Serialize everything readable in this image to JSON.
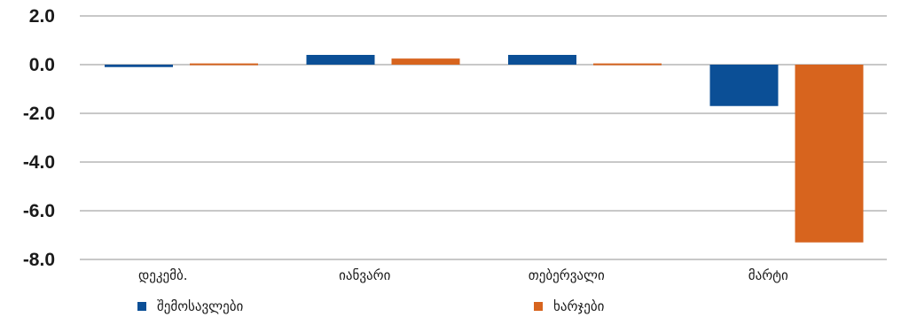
{
  "chart_data": {
    "type": "bar",
    "title": "",
    "xlabel": "",
    "ylabel": "",
    "ylim": [
      -8.0,
      2.0
    ],
    "yticks": [
      "2.0",
      "0.0",
      "-2.0",
      "-4.0",
      "-6.0",
      "-8.0"
    ],
    "categories": [
      "დეკემბ.",
      "იანვარი",
      "თებერვალი",
      "მარტი"
    ],
    "series": [
      {
        "name": "შემოსავლები",
        "color": "#0b4f96",
        "values": [
          -0.1,
          0.4,
          0.4,
          -1.7
        ]
      },
      {
        "name": "ხარჯები",
        "color": "#d7641e",
        "values": [
          0.05,
          0.25,
          0.05,
          -7.3
        ]
      }
    ],
    "grid": true,
    "legend": "bottom"
  }
}
